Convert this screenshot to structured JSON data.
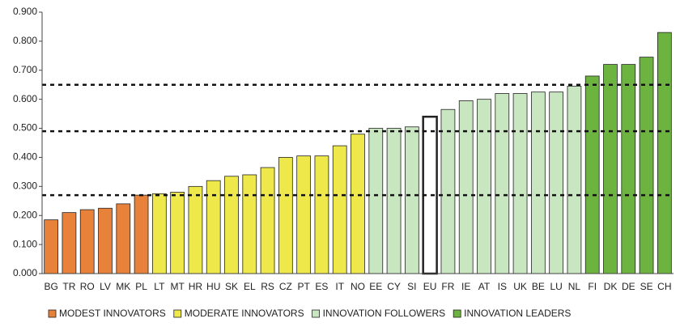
{
  "chart_data": {
    "type": "bar",
    "categories": [
      "BG",
      "TR",
      "RO",
      "LV",
      "MK",
      "PL",
      "LT",
      "MT",
      "HR",
      "HU",
      "SK",
      "EL",
      "RS",
      "CZ",
      "PT",
      "ES",
      "IT",
      "NO",
      "EE",
      "CY",
      "SI",
      "EU",
      "FR",
      "IE",
      "AT",
      "IS",
      "UK",
      "BE",
      "LU",
      "NL",
      "FI",
      "DK",
      "DE",
      "SE",
      "CH"
    ],
    "values": [
      0.185,
      0.21,
      0.22,
      0.225,
      0.24,
      0.27,
      0.275,
      0.28,
      0.3,
      0.32,
      0.335,
      0.34,
      0.365,
      0.4,
      0.405,
      0.405,
      0.44,
      0.48,
      0.5,
      0.5,
      0.505,
      0.54,
      0.565,
      0.595,
      0.6,
      0.62,
      0.62,
      0.625,
      0.625,
      0.645,
      0.68,
      0.72,
      0.72,
      0.745,
      0.83
    ],
    "colors": [
      "#e8823a",
      "#e8823a",
      "#e8823a",
      "#e8823a",
      "#e8823a",
      "#e8823a",
      "#eee84a",
      "#eee84a",
      "#eee84a",
      "#eee84a",
      "#eee84a",
      "#eee84a",
      "#eee84a",
      "#eee84a",
      "#eee84a",
      "#eee84a",
      "#eee84a",
      "#eee84a",
      "#c8e6c0",
      "#c8e6c0",
      "#c8e6c0",
      "#ffffff",
      "#c8e6c0",
      "#c8e6c0",
      "#c8e6c0",
      "#c8e6c0",
      "#c8e6c0",
      "#c8e6c0",
      "#c8e6c0",
      "#c8e6c0",
      "#6db33f",
      "#6db33f",
      "#6db33f",
      "#6db33f",
      "#6db33f"
    ],
    "legend": [
      {
        "name": "MODEST INNOVATORS",
        "color": "#e8823a"
      },
      {
        "name": "MODERATE INNOVATORS",
        "color": "#eee84a"
      },
      {
        "name": "INNOVATION FOLLOWERS",
        "color": "#c8e6c0"
      },
      {
        "name": "INNOVATION LEADERS",
        "color": "#6db33f"
      }
    ],
    "reference_lines": [
      0.27,
      0.49,
      0.65
    ],
    "ylim": [
      0,
      0.9
    ],
    "yticks": [
      {
        "value": 0,
        "label": "0.000"
      },
      {
        "value": 0.1,
        "label": "0.100"
      },
      {
        "value": 0.2,
        "label": "0.200"
      },
      {
        "value": 0.3,
        "label": "0.300"
      },
      {
        "value": 0.4,
        "label": "0.400"
      },
      {
        "value": 0.5,
        "label": "0.500"
      },
      {
        "value": 0.6,
        "label": "0.600"
      },
      {
        "value": 0.7,
        "label": "0.700"
      },
      {
        "value": 0.8,
        "label": "0.800"
      },
      {
        "value": 0.9,
        "label": "0.900"
      }
    ]
  }
}
